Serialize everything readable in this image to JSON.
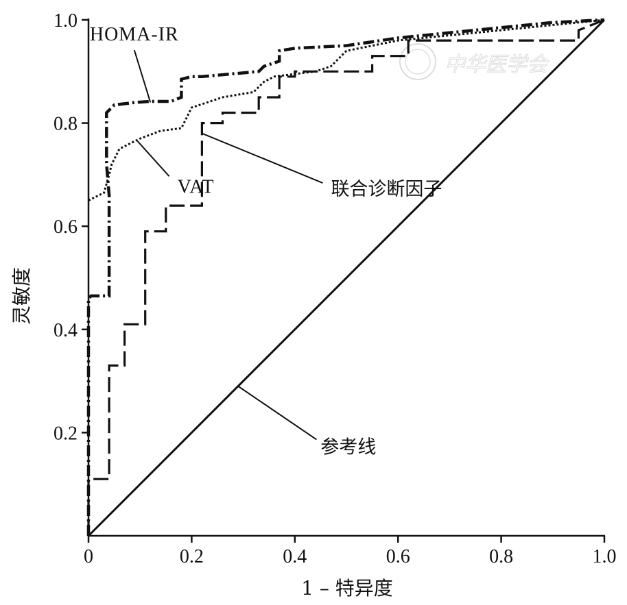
{
  "chart_data": {
    "type": "line",
    "title": "",
    "xlabel": "1 – 特异度",
    "ylabel": "灵敏度",
    "xlim": [
      0,
      1
    ],
    "ylim": [
      0,
      1
    ],
    "x_ticks": [
      "0",
      "0.2",
      "0.4",
      "0.6",
      "0.8",
      "1.0"
    ],
    "y_ticks": [
      "0.2",
      "0.4",
      "0.6",
      "0.8",
      "1.0"
    ],
    "grid": false,
    "legend": "none (series labeled inline with leader lines)",
    "series": [
      {
        "name": "HOMA-IR",
        "style": "dash-dot",
        "x": [
          0,
          0,
          0.005,
          0.04,
          0.04,
          0.035,
          0.035,
          0.045,
          0.05,
          0.09,
          0.12,
          0.16,
          0.18,
          0.18,
          0.2,
          0.22,
          0.33,
          0.34,
          0.37,
          0.37,
          0.4,
          0.5,
          0.6,
          0.7,
          0.8,
          0.9,
          1.0
        ],
        "y": [
          0,
          0.46,
          0.465,
          0.465,
          0.66,
          0.72,
          0.82,
          0.83,
          0.835,
          0.84,
          0.842,
          0.842,
          0.85,
          0.885,
          0.89,
          0.89,
          0.9,
          0.91,
          0.92,
          0.94,
          0.945,
          0.95,
          0.965,
          0.975,
          0.985,
          0.995,
          1.0
        ],
        "color": "#111111"
      },
      {
        "name": "VAT",
        "style": "dotted",
        "x": [
          0,
          0.01,
          0.03,
          0.04,
          0.045,
          0.06,
          0.08,
          0.1,
          0.14,
          0.18,
          0.2,
          0.26,
          0.32,
          0.33,
          0.34,
          0.36,
          0.44,
          0.47,
          0.49,
          0.5,
          0.6,
          0.7,
          0.8,
          0.9,
          1.0
        ],
        "y": [
          0.65,
          0.655,
          0.665,
          0.7,
          0.72,
          0.75,
          0.76,
          0.77,
          0.785,
          0.79,
          0.83,
          0.85,
          0.86,
          0.87,
          0.88,
          0.89,
          0.9,
          0.91,
          0.93,
          0.94,
          0.96,
          0.97,
          0.98,
          0.99,
          1.0
        ],
        "color": "#111111"
      },
      {
        "name": "联合诊断因子",
        "style": "long-dash",
        "x": [
          0,
          0,
          0.04,
          0.04,
          0.07,
          0.07,
          0.11,
          0.11,
          0.15,
          0.15,
          0.22,
          0.22,
          0.26,
          0.26,
          0.33,
          0.33,
          0.37,
          0.37,
          0.4,
          0.4,
          0.55,
          0.55,
          0.62,
          0.62,
          0.95,
          0.95,
          1.0
        ],
        "y": [
          0,
          0.11,
          0.11,
          0.33,
          0.33,
          0.41,
          0.41,
          0.59,
          0.59,
          0.64,
          0.64,
          0.8,
          0.8,
          0.82,
          0.82,
          0.85,
          0.85,
          0.89,
          0.89,
          0.9,
          0.9,
          0.93,
          0.93,
          0.96,
          0.96,
          0.98,
          1.0
        ],
        "color": "#111111"
      },
      {
        "name": "参考线",
        "style": "solid",
        "x": [
          0,
          1
        ],
        "y": [
          0,
          1
        ],
        "color": "#111111"
      }
    ],
    "annotations": [
      {
        "text": "HOMA-IR",
        "points_to": "HOMA-IR",
        "label_at": [
          0.15,
          0.96
        ],
        "target": [
          0.12,
          0.84
        ]
      },
      {
        "text": "VAT",
        "points_to": "VAT",
        "label_at": [
          0.175,
          0.665
        ],
        "target": [
          0.095,
          0.765
        ]
      },
      {
        "text": "联合诊断因子",
        "points_to": "联合诊断因子",
        "label_at": [
          0.47,
          0.66
        ],
        "target": [
          0.22,
          0.78
        ]
      },
      {
        "text": "参考线",
        "points_to": "参考线",
        "label_at": [
          0.45,
          0.16
        ],
        "target": [
          0.29,
          0.29
        ]
      }
    ],
    "watermark": "中华医学会"
  }
}
